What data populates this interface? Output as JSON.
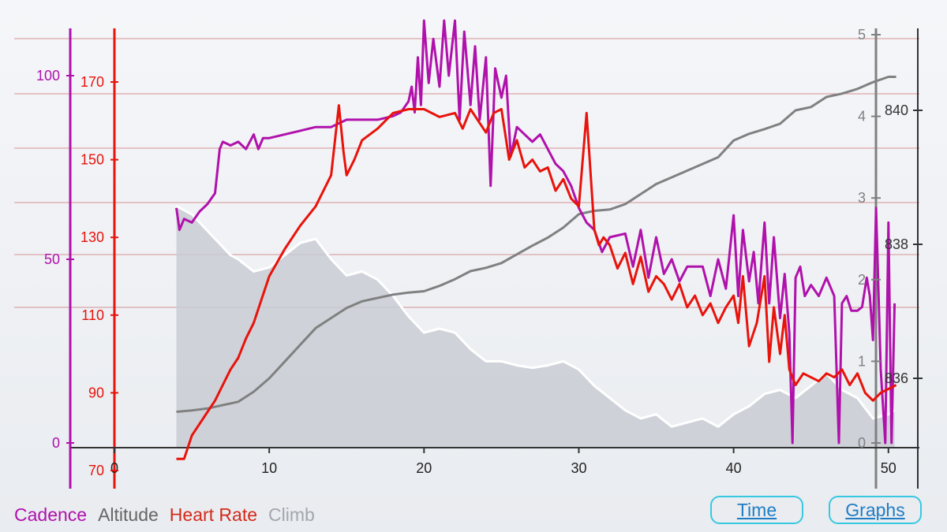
{
  "colors": {
    "cadence": "#b011ab",
    "heart_rate": "#e8130b",
    "altitude": "#808080",
    "climb": "#ffffff",
    "climb_fill": "#c9ccd3",
    "gridline": "#c96a6a",
    "axis": "#333333",
    "button_border": "#37c8e2",
    "button_text": "#1f7dc4"
  },
  "legend": [
    {
      "label": "Cadence",
      "color": "#b011ab"
    },
    {
      "label": "Altitude",
      "color": "#666666"
    },
    {
      "label": "Heart Rate",
      "color": "#d42a1a"
    },
    {
      "label": "Climb",
      "color": "#a3a6ad"
    }
  ],
  "buttons": {
    "time": "Time",
    "graphs": "Graphs"
  },
  "chart_data": {
    "type": "line",
    "grid": true,
    "x_axis": {
      "range": [
        0,
        52
      ],
      "ticks": [
        "0",
        "10",
        "20",
        "30",
        "40",
        "50"
      ]
    },
    "axes": {
      "cadence": {
        "range": [
          0,
          115
        ],
        "ticks": [
          "0",
          "50",
          "100"
        ]
      },
      "heart_rate": {
        "range": [
          70,
          180
        ],
        "ticks": [
          "70",
          "90",
          "110",
          "130",
          "150",
          "170"
        ]
      },
      "climb": {
        "range": [
          0,
          5
        ],
        "ticks": [
          "0",
          "1",
          "2",
          "3",
          "4",
          "5"
        ]
      },
      "altitude": {
        "range": [
          835.5,
          840.6
        ],
        "ticks": [
          "836",
          "838",
          "840"
        ]
      }
    },
    "series": [
      {
        "name": "Cadence",
        "axis": "cadence",
        "x": [
          4,
          4.2,
          4.5,
          5,
          5.5,
          6,
          6.5,
          6.8,
          7,
          7.5,
          8,
          8.5,
          9,
          9.3,
          9.6,
          10,
          11,
          12,
          13,
          14,
          15,
          16,
          17,
          18,
          18.5,
          19,
          19.2,
          19.4,
          19.6,
          19.8,
          20,
          20.3,
          20.6,
          21,
          21.3,
          21.6,
          22,
          22.3,
          22.6,
          23,
          23.3,
          23.6,
          24,
          24.3,
          24.6,
          25,
          25.3,
          25.6,
          26,
          26.5,
          27,
          27.5,
          28,
          28.5,
          29,
          29.5,
          30,
          30.5,
          31,
          31.5,
          32,
          33,
          33.5,
          34,
          34.5,
          35,
          35.5,
          36,
          36.5,
          37,
          38,
          38.5,
          39,
          39.5,
          40,
          40.3,
          40.6,
          41,
          41.3,
          41.6,
          42,
          42.3,
          42.6,
          43,
          43.3,
          43.6,
          43.8,
          44,
          44.3,
          44.6,
          45,
          45.5,
          46,
          46.5,
          46.8,
          47,
          47.3,
          47.6,
          48,
          48.3,
          48.6,
          48.8,
          49,
          49.2,
          49.5,
          49.8,
          50,
          50.2,
          50.4
        ],
        "y": [
          64,
          58,
          61,
          60,
          63,
          65,
          68,
          80,
          82,
          81,
          82,
          80,
          84,
          80,
          83,
          83,
          84,
          85,
          86,
          86,
          88,
          88,
          88,
          89,
          90,
          93,
          97,
          90,
          105,
          92,
          115,
          98,
          110,
          97,
          115,
          100,
          115,
          88,
          112,
          92,
          108,
          88,
          105,
          70,
          102,
          94,
          100,
          78,
          86,
          84,
          82,
          84,
          80,
          76,
          74,
          70,
          64,
          60,
          58,
          52,
          56,
          57,
          48,
          58,
          45,
          56,
          46,
          50,
          44,
          48,
          48,
          40,
          50,
          42,
          62,
          40,
          58,
          44,
          52,
          38,
          60,
          38,
          56,
          34,
          46,
          30,
          0,
          45,
          48,
          40,
          43,
          40,
          45,
          40,
          0,
          38,
          40,
          36,
          36,
          37,
          45,
          40,
          28,
          64,
          20,
          0,
          60,
          0,
          38
        ]
      },
      {
        "name": "Heart Rate",
        "axis": "heart_rate",
        "x": [
          4,
          4.5,
          5,
          5.5,
          6,
          6.5,
          7,
          7.5,
          8,
          8.5,
          9,
          9.5,
          10,
          11,
          12,
          13,
          14,
          14.5,
          14.8,
          15,
          15.5,
          16,
          17,
          18,
          19,
          20,
          21,
          22,
          22.5,
          23,
          23.5,
          24,
          24.5,
          25,
          25.5,
          26,
          26.5,
          27,
          27.5,
          28,
          28.5,
          29,
          29.5,
          30,
          30.5,
          31,
          31.3,
          31.6,
          32,
          32.5,
          33,
          33.5,
          34,
          34.5,
          35,
          35.5,
          36,
          36.5,
          37,
          37.5,
          38,
          38.5,
          39,
          39.5,
          40,
          40.3,
          40.6,
          41,
          41.5,
          42,
          42.3,
          42.6,
          43,
          43.3,
          43.6,
          44,
          44.5,
          45,
          45.5,
          46,
          46.5,
          47,
          47.5,
          48,
          48.5,
          49,
          49.5,
          50,
          50.5
        ],
        "y": [
          73,
          73,
          79,
          82,
          85,
          88,
          92,
          96,
          99,
          104,
          108,
          114,
          120,
          127,
          133,
          138,
          146,
          164,
          152,
          146,
          150,
          155,
          158,
          162,
          163,
          163,
          161,
          162,
          158,
          163,
          160,
          157,
          162,
          163,
          150,
          155,
          148,
          150,
          147,
          148,
          142,
          145,
          140,
          138,
          162,
          132,
          128,
          130,
          128,
          122,
          126,
          118,
          125,
          116,
          120,
          118,
          114,
          118,
          112,
          115,
          110,
          113,
          108,
          112,
          115,
          108,
          120,
          102,
          108,
          120,
          98,
          112,
          100,
          110,
          96,
          92,
          95,
          94,
          93,
          95,
          94,
          96,
          92,
          95,
          90,
          88,
          90,
          91,
          92
        ]
      },
      {
        "name": "Climb",
        "axis": "climb",
        "x": [
          4,
          4.5,
          5,
          5.5,
          6,
          6.5,
          7,
          7.5,
          8,
          9,
          10,
          11,
          12,
          13,
          14,
          15,
          16,
          17,
          18,
          19,
          20,
          21,
          22,
          23,
          24,
          25,
          26,
          27,
          28,
          29,
          30,
          31,
          32,
          33,
          34,
          35,
          36,
          37,
          38,
          39,
          40,
          41,
          42,
          43,
          44,
          45,
          46,
          47,
          48,
          49,
          50,
          50.4
        ],
        "y": [
          2.9,
          2.85,
          2.8,
          2.7,
          2.6,
          2.5,
          2.4,
          2.3,
          2.25,
          2.1,
          2.15,
          2.3,
          2.45,
          2.5,
          2.25,
          2.05,
          2.1,
          2.0,
          1.8,
          1.55,
          1.35,
          1.4,
          1.35,
          1.15,
          1.0,
          1.0,
          0.95,
          0.92,
          0.95,
          1.0,
          0.9,
          0.7,
          0.55,
          0.4,
          0.3,
          0.35,
          0.2,
          0.25,
          0.3,
          0.2,
          0.35,
          0.45,
          0.6,
          0.65,
          0.55,
          0.7,
          0.85,
          0.65,
          0.55,
          0.3,
          0.35,
          0.4
        ]
      },
      {
        "name": "Altitude",
        "axis": "altitude",
        "x": [
          4,
          5,
          6,
          7,
          8,
          9,
          10,
          11,
          12,
          13,
          14,
          15,
          16,
          17,
          18,
          19,
          20,
          21,
          22,
          23,
          24,
          25,
          26,
          27,
          28,
          29,
          30,
          31,
          32,
          33,
          34,
          35,
          36,
          37,
          38,
          39,
          40,
          41,
          42,
          43,
          44,
          45,
          46,
          47,
          48,
          49,
          50,
          50.5
        ],
        "y": [
          835.5,
          835.52,
          835.55,
          835.6,
          835.65,
          835.8,
          836.0,
          836.25,
          836.5,
          836.75,
          836.9,
          837.05,
          837.15,
          837.2,
          837.25,
          837.28,
          837.3,
          837.38,
          837.48,
          837.6,
          837.65,
          837.72,
          837.85,
          837.98,
          838.1,
          838.25,
          838.45,
          838.5,
          838.52,
          838.6,
          838.75,
          838.9,
          839.0,
          839.1,
          839.2,
          839.3,
          839.55,
          839.65,
          839.72,
          839.8,
          840.0,
          840.05,
          840.2,
          840.25,
          840.32,
          840.42,
          840.5,
          840.5
        ]
      }
    ]
  }
}
